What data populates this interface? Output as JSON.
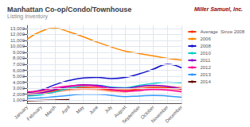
{
  "chart_data": {
    "type": "line",
    "title": "Manhattan Co-op/Condo/Townhouse",
    "subtitle": "Listing Inventory",
    "annotations": [
      {
        "text": "Miller Samuel, Inc.",
        "color": "#990000"
      }
    ],
    "categories": [
      "January",
      "February",
      "March",
      "April",
      "May",
      "June",
      "July",
      "August",
      "September",
      "October",
      "November",
      "December"
    ],
    "series": [
      {
        "name": "Average  Since 2008",
        "color": "#FF3300",
        "values": [
          2000,
          2200,
          2600,
          2900,
          3100,
          3000,
          2700,
          2600,
          2900,
          3100,
          3100,
          2900
        ],
        "band_lower": [
          1650,
          1850,
          2250,
          2550,
          2750,
          2650,
          2350,
          2250,
          2550,
          2750,
          2750,
          2550
        ],
        "band_upper": [
          2350,
          2550,
          2950,
          3250,
          3450,
          3350,
          3050,
          2950,
          3250,
          3450,
          3450,
          3250
        ]
      },
      {
        "name": "2006",
        "color": "#FF8800",
        "values": [
          11200,
          12500,
          13000,
          12400,
          11600,
          10700,
          9900,
          9200,
          8800,
          8400,
          8000,
          7700
        ]
      },
      {
        "name": "2008",
        "color": "#1111CC",
        "values": [
          2300,
          2700,
          3600,
          4300,
          4700,
          4800,
          4600,
          4800,
          5400,
          6200,
          7000,
          6400
        ]
      },
      {
        "name": "2010",
        "color": "#00CCCC",
        "values": [
          1700,
          1900,
          2400,
          3000,
          3400,
          3500,
          3200,
          3100,
          3500,
          3800,
          4000,
          3900
        ]
      },
      {
        "name": "2011",
        "color": "#8800CC",
        "values": [
          2000,
          2200,
          2800,
          3300,
          3600,
          3500,
          3100,
          3000,
          3300,
          3500,
          3300,
          2900
        ]
      },
      {
        "name": "2012",
        "color": "#FF0099",
        "values": [
          2400,
          2600,
          3100,
          3400,
          3500,
          3300,
          2800,
          2500,
          2600,
          2800,
          2700,
          2400
        ]
      },
      {
        "name": "2013",
        "color": "#3399FF",
        "values": [
          1300,
          1400,
          1600,
          1800,
          2000,
          2000,
          1800,
          1600,
          1700,
          1800,
          1700,
          1500
        ]
      },
      {
        "name": "2014",
        "color": "#660000",
        "values": [
          900,
          960,
          1020,
          1100,
          null,
          null,
          null,
          null,
          null,
          null,
          null,
          null
        ]
      }
    ],
    "ylim": [
      500,
      13500
    ],
    "yticks": [
      {
        "value": 1000,
        "label": "1,000"
      },
      {
        "value": 2000,
        "label": "2,000"
      },
      {
        "value": 3000,
        "label": "3,000"
      },
      {
        "value": 4000,
        "label": "4,000"
      },
      {
        "value": 5000,
        "label": "5,000"
      },
      {
        "value": 6000,
        "label": "6,000"
      },
      {
        "value": 7000,
        "label": "7,000"
      },
      {
        "value": 8000,
        "label": "8,000"
      },
      {
        "value": 9000,
        "label": "9,000"
      },
      {
        "value": 10000,
        "label": "10,000"
      },
      {
        "value": 11000,
        "label": "11,000"
      },
      {
        "value": 12000,
        "label": "12,000"
      },
      {
        "value": 13000,
        "label": "13,000"
      }
    ],
    "grid": true,
    "legend": "right"
  }
}
